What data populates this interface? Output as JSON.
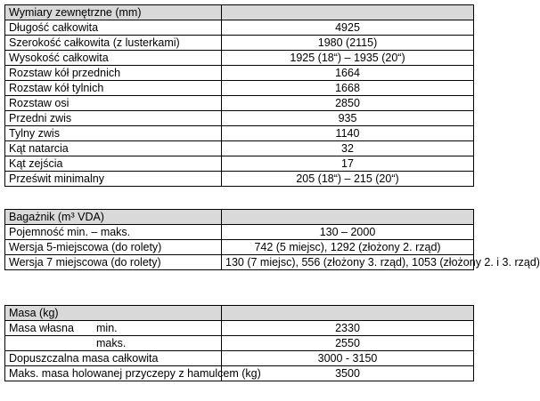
{
  "sections": [
    {
      "heading": "Wymiary zewnętrzne (mm)",
      "rows": [
        {
          "label": "Długość całkowita",
          "value": "4925"
        },
        {
          "label": "Szerokość całkowita (z lusterkami)",
          "value": "1980 (2115)"
        },
        {
          "label": "Wysokość całkowita",
          "value": "1925 (18“) – 1935 (20“)"
        },
        {
          "label": "Rozstaw kół przednich",
          "value": "1664"
        },
        {
          "label": "Rozstaw kół tylnich",
          "value": "1668"
        },
        {
          "label": "Rozstaw osi",
          "value": "2850"
        },
        {
          "label": "Przedni zwis",
          "value": "935"
        },
        {
          "label": "Tylny zwis",
          "value": "1140"
        },
        {
          "label": "Kąt natarcia",
          "value": "32"
        },
        {
          "label": "Kąt zejścia",
          "value": "17"
        },
        {
          "label": "Prześwit minimalny",
          "value": "205 (18“) – 215 (20“)"
        }
      ]
    },
    {
      "heading": "Bagażnik (m³ VDA)",
      "rows": [
        {
          "label": "Pojemność min. – maks.",
          "value": "130 – 2000"
        },
        {
          "label": "Wersja 5-miejscowa (do rolety)",
          "value": "742 (5 miejsc), 1292 (złożony 2. rząd)"
        },
        {
          "label": "Wersja 7 miejscowa (do rolety)",
          "value": "130 (7 miejsc), 556 (złożony 3. rząd), 1053 (złożony 2. i 3. rząd)"
        }
      ]
    },
    {
      "heading": "Masa (kg)",
      "rows": [
        {
          "label": "Masa własna",
          "sublabel": "min.",
          "value": "2330"
        },
        {
          "label": "",
          "sublabel": "maks.",
          "value": "2550"
        },
        {
          "label": "Dopuszczalna masa całkowita",
          "value": "3000 - 3150"
        },
        {
          "label": "Maks. masa holowanej przyczepy z hamulcem (kg)",
          "value": "3500"
        }
      ]
    }
  ]
}
